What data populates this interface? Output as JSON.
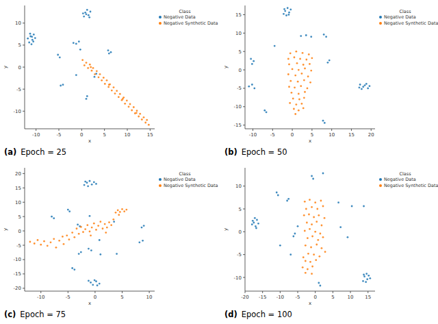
{
  "chart_data": [
    {
      "type": "scatter",
      "panel_label": "(a)",
      "title": "Epoch = 25",
      "x_label": "x",
      "y_label": "y",
      "legend_title": "Class",
      "legend": "upper right",
      "xlim": [
        -12.5,
        16
      ],
      "ylim": [
        -14,
        14
      ],
      "xticks": [
        -10,
        -5,
        0,
        5,
        10,
        15
      ],
      "yticks": [
        -10,
        -5,
        0,
        5,
        10
      ],
      "series": [
        {
          "name": "Negative Data",
          "color": "#1f77b4",
          "marker": "circle",
          "x": [
            -11.2,
            -10.8,
            -11.5,
            -10.5,
            -11.0,
            -10.2,
            -11.8,
            -10.6,
            -11.3,
            -10.9,
            0.8,
            1.5,
            0.5,
            1.9,
            1.2,
            0.3,
            1.7,
            1.0,
            -1.8,
            -0.6,
            -1.2,
            5.8,
            6.4,
            6.0,
            -5.2,
            -4.8,
            -4.6,
            -4.1,
            1.0,
            1.2,
            -1.2,
            2.8,
            3.2,
            -0.3
          ],
          "values": [
            7.0,
            6.2,
            5.6,
            7.4,
            5.2,
            6.6,
            6.5,
            5.8,
            7.6,
            6.9,
            12.4,
            11.8,
            11.5,
            12.6,
            13.0,
            12.2,
            11.3,
            12.0,
            5.5,
            5.8,
            5.3,
            3.8,
            3.4,
            3.1,
            2.8,
            2.2,
            -4.2,
            -4.0,
            -7.2,
            -6.6,
            -1.8,
            -2.2,
            -1.5,
            4.0
          ]
        },
        {
          "name": "Negative Synthetic Data",
          "color": "#ff7f0e",
          "marker": "circle",
          "x": [
            0.2,
            0.6,
            1.0,
            1.4,
            1.8,
            2.2,
            2.5,
            2.9,
            3.3,
            3.7,
            4.0,
            4.4,
            4.8,
            5.1,
            5.5,
            5.9,
            6.2,
            6.6,
            7.0,
            7.3,
            7.7,
            8.1,
            8.4,
            8.8,
            9.2,
            9.5,
            9.9,
            10.3,
            10.6,
            11.0,
            11.4,
            11.7,
            12.1,
            12.5,
            12.8,
            13.2,
            13.6,
            14.0,
            14.3,
            14.7,
            2.0,
            6.0,
            9.0,
            12.0
          ],
          "values": [
            1.6,
            0.4,
            1.0,
            -0.2,
            0.6,
            -0.8,
            -0.2,
            -1.6,
            -0.9,
            -2.3,
            -1.6,
            -3.0,
            -2.4,
            -3.8,
            -3.0,
            -4.5,
            -3.9,
            -5.3,
            -4.6,
            -6.0,
            -5.4,
            -6.8,
            -6.1,
            -7.5,
            -6.9,
            -8.3,
            -7.6,
            -9.0,
            -8.4,
            -9.8,
            -9.1,
            -10.5,
            -9.9,
            -11.2,
            -10.6,
            -11.9,
            -11.4,
            -12.6,
            -12.0,
            -13.1,
            0.0,
            -4.0,
            -7.2,
            -10.4
          ]
        }
      ]
    },
    {
      "type": "scatter",
      "panel_label": "(b)",
      "title": "Epoch = 50",
      "x_label": "x",
      "y_label": "y",
      "legend_title": "Class",
      "legend": "upper right",
      "xlim": [
        -12,
        21
      ],
      "ylim": [
        -16,
        17.5
      ],
      "xticks": [
        -10,
        -5,
        0,
        5,
        10,
        15,
        20
      ],
      "yticks": [
        -15,
        -10,
        -5,
        0,
        5,
        10,
        15
      ],
      "series": [
        {
          "name": "Negative Data",
          "color": "#1f77b4",
          "marker": "circle",
          "x": [
            -1.8,
            -0.8,
            -1.2,
            -2.2,
            -0.4,
            -1.5,
            -0.9,
            -2.0,
            3.5,
            4.8,
            2.2,
            8.0,
            8.6,
            -10.5,
            -9.8,
            -10.2,
            -11.0,
            -10.2,
            -9.6,
            -7.0,
            -6.6,
            7.8,
            8.2,
            17.2,
            18.0,
            18.8,
            17.6,
            19.2,
            18.4,
            17.0,
            19.6,
            9.4,
            9.0,
            -4.5
          ],
          "values": [
            16.0,
            15.6,
            16.8,
            15.2,
            16.4,
            14.8,
            15.0,
            16.5,
            9.4,
            9.0,
            9.2,
            9.6,
            9.0,
            3.0,
            2.4,
            1.6,
            -4.5,
            -4.0,
            -5.0,
            -11.0,
            -11.5,
            -13.8,
            -14.4,
            -4.0,
            -4.6,
            -3.8,
            -5.2,
            -5.0,
            -4.2,
            -4.8,
            -4.4,
            2.6,
            2.0,
            6.5
          ]
        },
        {
          "name": "Negative Synthetic Data",
          "color": "#ff7f0e",
          "marker": "circle",
          "x": [
            -0.5,
            1.0,
            2.6,
            4.2,
            -1.0,
            0.5,
            2.0,
            3.6,
            5.0,
            -0.8,
            1.2,
            2.8,
            4.4,
            0.0,
            1.6,
            3.2,
            4.8,
            -1.0,
            0.8,
            2.4,
            4.0,
            -0.4,
            1.4,
            3.0,
            4.6,
            -0.8,
            0.6,
            2.2,
            3.8,
            -0.2,
            1.6,
            3.2,
            0.2,
            1.8,
            3.0,
            -0.6,
            1.0,
            2.4,
            0.4,
            1.6,
            0.8,
            2.8
          ],
          "values": [
            4.5,
            5.0,
            4.6,
            4.2,
            3.0,
            3.4,
            3.0,
            2.8,
            3.2,
            1.5,
            1.8,
            1.4,
            1.6,
            0.2,
            0.0,
            0.4,
            -0.2,
            -1.2,
            -1.5,
            -1.0,
            -1.8,
            -3.0,
            -3.2,
            -2.8,
            -3.4,
            -4.6,
            -4.8,
            -4.4,
            -5.0,
            -6.2,
            -6.5,
            -6.0,
            -7.8,
            -8.0,
            -7.6,
            -9.0,
            -9.4,
            -9.2,
            -10.6,
            -11.0,
            -12.0,
            -10.4
          ]
        }
      ]
    },
    {
      "type": "scatter",
      "panel_label": "(c)",
      "title": "Epoch = 75",
      "x_label": "x",
      "y_label": "y",
      "legend_title": "Class",
      "legend": "upper right",
      "xlim": [
        -13,
        11
      ],
      "ylim": [
        -21,
        22
      ],
      "xticks": [
        -10,
        -5,
        0,
        5,
        10
      ],
      "yticks": [
        -20,
        -15,
        -10,
        -5,
        0,
        5,
        10,
        15,
        20
      ],
      "series": [
        {
          "name": "Negative Data",
          "color": "#1f77b4",
          "marker": "circle",
          "x": [
            -1.5,
            -0.6,
            -1.0,
            -2.0,
            -0.2,
            -1.3,
            0.2,
            -1.8,
            -0.8,
            0.2,
            -0.4,
            0.8,
            -1.2,
            0.4,
            -0.1,
            -8.0,
            -7.6,
            -5.0,
            -4.7,
            -3.2,
            -2.8,
            3.5,
            -1.2,
            -0.7,
            -3.0,
            -2.6,
            1.0,
            -4.2,
            -3.8,
            9.0,
            8.6,
            8.2,
            8.8,
            4.0,
            -1.0,
            0.8
          ],
          "values": [
            16.8,
            16.2,
            17.4,
            16.0,
            17.0,
            15.6,
            16.4,
            17.2,
            -18.0,
            -17.6,
            -18.8,
            -18.4,
            -17.4,
            -19.0,
            -17.2,
            5.0,
            4.4,
            7.4,
            6.8,
            2.2,
            1.6,
            3.2,
            -6.2,
            -6.8,
            -8.0,
            -7.4,
            -8.2,
            -13.0,
            -13.5,
            1.8,
            1.2,
            -4.0,
            -3.4,
            -8.0,
            5.2,
            -3.2
          ]
        },
        {
          "name": "Negative Synthetic Data",
          "color": "#ff7f0e",
          "marker": "circle",
          "x": [
            -12.0,
            -11.2,
            -10.6,
            -10.0,
            -9.4,
            -8.8,
            -8.2,
            -7.6,
            -7.2,
            -6.6,
            -6.0,
            -5.8,
            -5.2,
            -4.8,
            -4.2,
            -3.8,
            -3.4,
            -3.0,
            -2.6,
            -2.2,
            -1.8,
            -1.4,
            -1.0,
            -0.6,
            -0.2,
            0.2,
            0.6,
            1.0,
            1.4,
            1.8,
            2.2,
            2.6,
            3.0,
            3.4,
            3.8,
            4.2,
            4.6,
            5.0,
            5.4,
            5.8,
            4.4,
            2.0,
            -0.8
          ],
          "values": [
            -3.8,
            -4.4,
            -3.2,
            -4.8,
            -3.6,
            -5.2,
            -4.0,
            -2.8,
            -5.8,
            -3.4,
            -2.0,
            -4.6,
            -1.6,
            -3.0,
            -0.6,
            -2.2,
            0.8,
            -1.0,
            1.4,
            -0.4,
            0.6,
            2.0,
            -0.2,
            1.2,
            2.6,
            0.4,
            1.8,
            3.2,
            0.8,
            2.4,
            1.2,
            3.0,
            2.0,
            4.0,
            6.4,
            7.2,
            6.6,
            7.6,
            6.8,
            7.4,
            5.6,
            -0.6,
            -1.6
          ]
        }
      ]
    },
    {
      "type": "scatter",
      "panel_label": "(d)",
      "title": "Epoch = 100",
      "x_label": "x",
      "y_label": "y",
      "legend_title": "Class",
      "legend": "upper right",
      "xlim": [
        -20,
        17
      ],
      "ylim": [
        -13,
        14
      ],
      "xticks": [
        -20,
        -15,
        -10,
        -5,
        0,
        5,
        10,
        15
      ],
      "yticks": [
        -10,
        -5,
        0,
        5,
        10
      ],
      "series": [
        {
          "name": "Negative Data",
          "color": "#1f77b4",
          "marker": "circle",
          "x": [
            -17.5,
            -16.6,
            -17.0,
            -18.0,
            -16.2,
            -17.2,
            -16.8,
            -17.8,
            14.0,
            14.8,
            13.6,
            15.2,
            14.4,
            15.6,
            13.8,
            14.6,
            -11.0,
            -10.6,
            -1.0,
            -0.6,
            2.2,
            -8.0,
            -7.6,
            -6.2,
            -5.8,
            -7.0,
            -10.0,
            7.2,
            6.6,
            9.2,
            1.0,
            1.4,
            10.4,
            13.8,
            -5.0
          ],
          "values": [
            2.0,
            2.6,
            1.2,
            1.6,
            1.8,
            3.0,
            0.8,
            2.4,
            -9.8,
            -10.4,
            -10.8,
            -9.6,
            -11.0,
            -10.2,
            -9.4,
            -9.2,
            8.6,
            8.0,
            12.2,
            11.6,
            12.8,
            6.8,
            7.2,
            -1.0,
            -0.4,
            -5.0,
            -3.0,
            1.0,
            6.4,
            -1.2,
            -11.2,
            -11.8,
            5.6,
            5.6,
            1.2
          ]
        },
        {
          "name": "Negative Synthetic Data",
          "color": "#ff7f0e",
          "marker": "circle",
          "x": [
            -3.0,
            -1.6,
            0.0,
            1.6,
            -2.6,
            -1.0,
            0.6,
            2.2,
            -3.2,
            -1.8,
            -0.4,
            1.0,
            2.6,
            -2.4,
            -1.0,
            0.4,
            1.8,
            -3.0,
            -1.6,
            0.0,
            1.4,
            -2.2,
            -0.8,
            0.8,
            2.2,
            -2.8,
            -1.2,
            0.4,
            1.8,
            -2.0,
            -0.4,
            1.2,
            -2.8,
            -1.4,
            0.2,
            -3.6,
            -2.2,
            -0.8,
            -2.8,
            -1.0,
            2.8,
            -3.4
          ],
          "values": [
            6.6,
            7.0,
            6.4,
            6.8,
            5.0,
            5.4,
            5.0,
            5.6,
            3.6,
            3.8,
            3.2,
            3.6,
            3.0,
            2.0,
            1.6,
            2.2,
            1.4,
            0.2,
            0.6,
            0.0,
            -0.4,
            -1.4,
            -1.0,
            -1.8,
            -1.2,
            -3.0,
            -3.4,
            -2.8,
            -3.6,
            -4.8,
            -5.0,
            -5.4,
            -6.4,
            -6.6,
            -6.2,
            -7.8,
            -8.2,
            -7.6,
            -9.0,
            -9.2,
            -4.4,
            -5.6
          ]
        }
      ]
    }
  ]
}
